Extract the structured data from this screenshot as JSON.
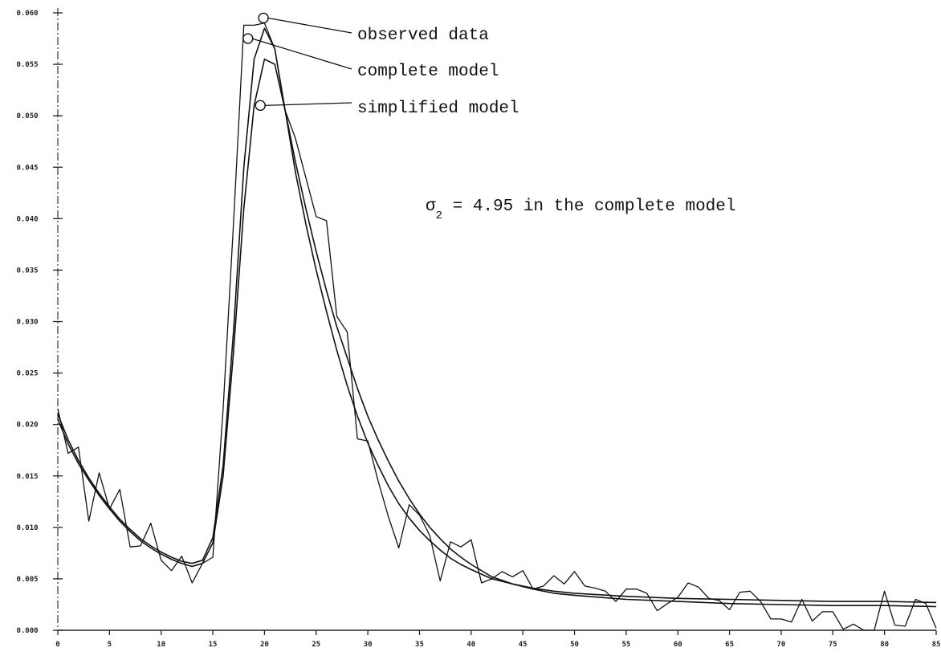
{
  "chart_data": {
    "type": "line",
    "title": "",
    "xlabel": "",
    "ylabel": "",
    "xlim": [
      0,
      85
    ],
    "ylim": [
      0.0,
      0.06
    ],
    "grid": false,
    "x_ticks": [
      0,
      5,
      10,
      15,
      20,
      25,
      30,
      35,
      40,
      45,
      50,
      55,
      60,
      65,
      70,
      75,
      80,
      85
    ],
    "x_tick_labels": [
      "0",
      "5",
      "10",
      "15",
      "20",
      "25",
      "30",
      "35",
      "40",
      "45",
      "50",
      "55",
      "60",
      "65",
      "70",
      "75",
      "80",
      "85"
    ],
    "y_ticks": [
      0.0,
      0.005,
      0.01,
      0.015,
      0.02,
      0.025,
      0.03,
      0.035,
      0.04,
      0.045,
      0.05,
      0.055,
      0.06
    ],
    "y_tick_labels": [
      "0.000",
      "0.005",
      "0.010",
      "0.015",
      "0.020",
      "0.025",
      "0.030",
      "0.035",
      "0.040",
      "0.045",
      "0.050",
      "0.055",
      "0.060"
    ],
    "series": [
      {
        "name": "observed data",
        "x": [
          0,
          1,
          2,
          3,
          4,
          5,
          6,
          7,
          8,
          9,
          10,
          11,
          12,
          13,
          14,
          15,
          16,
          17,
          18,
          19,
          20,
          21,
          22,
          23,
          24,
          25,
          26,
          27,
          28,
          29,
          30,
          31,
          32,
          33,
          34,
          35,
          36,
          37,
          38,
          39,
          40,
          41,
          42,
          43,
          44,
          45,
          46,
          47,
          48,
          49,
          50,
          51,
          52,
          53,
          54,
          55,
          56,
          57,
          58,
          59,
          60,
          61,
          62,
          63,
          64,
          65,
          66,
          67,
          68,
          69,
          70,
          71,
          72,
          73,
          74,
          75,
          76,
          77,
          78,
          79,
          80,
          81,
          82,
          83,
          84,
          85
        ],
        "y": [
          0.0215,
          0.0172,
          0.0178,
          0.0106,
          0.0153,
          0.0118,
          0.0137,
          0.0081,
          0.0082,
          0.0104,
          0.0068,
          0.0058,
          0.0072,
          0.0046,
          0.0065,
          0.0071,
          0.0215,
          0.0395,
          0.0588,
          0.0588,
          0.059,
          0.0565,
          0.0505,
          0.0478,
          0.044,
          0.0402,
          0.0398,
          0.0305,
          0.029,
          0.0186,
          0.0184,
          0.0145,
          0.011,
          0.008,
          0.0122,
          0.0112,
          0.0092,
          0.0048,
          0.0086,
          0.0081,
          0.0088,
          0.0046,
          0.005,
          0.0057,
          0.0052,
          0.0058,
          0.004,
          0.0043,
          0.0053,
          0.0045,
          0.0057,
          0.0043,
          0.0041,
          0.0038,
          0.0028,
          0.004,
          0.004,
          0.0036,
          0.0019,
          0.0026,
          0.0032,
          0.0046,
          0.0042,
          0.0031,
          0.0029,
          0.002,
          0.0037,
          0.0038,
          0.0028,
          0.0011,
          0.0011,
          0.0008,
          0.003,
          0.0009,
          0.0018,
          0.0018,
          0.0001,
          0.0006,
          0.0,
          0.0,
          0.0038,
          0.0005,
          0.0004,
          0.003,
          0.0026,
          0.0002
        ]
      },
      {
        "name": "complete model",
        "x": [
          0,
          1,
          2,
          3,
          4,
          5,
          6,
          7,
          8,
          9,
          10,
          11,
          12,
          13,
          14,
          15,
          16,
          17,
          18,
          19,
          20,
          21,
          22,
          23,
          24,
          25,
          26,
          27,
          28,
          29,
          30,
          31,
          32,
          33,
          34,
          35,
          36,
          37,
          38,
          39,
          40,
          42,
          44,
          46,
          48,
          50,
          55,
          60,
          65,
          70,
          75,
          80,
          85
        ],
        "y": [
          0.021,
          0.0185,
          0.0165,
          0.0148,
          0.0133,
          0.012,
          0.0108,
          0.0098,
          0.0089,
          0.0082,
          0.0076,
          0.0071,
          0.0067,
          0.0065,
          0.0068,
          0.009,
          0.016,
          0.029,
          0.045,
          0.0555,
          0.0585,
          0.0565,
          0.0505,
          0.0445,
          0.0395,
          0.035,
          0.031,
          0.0272,
          0.0238,
          0.0208,
          0.0182,
          0.016,
          0.014,
          0.0123,
          0.0109,
          0.0097,
          0.0087,
          0.0078,
          0.007,
          0.0064,
          0.0059,
          0.005,
          0.0045,
          0.0041,
          0.0038,
          0.0036,
          0.0033,
          0.0031,
          0.003,
          0.0029,
          0.0028,
          0.0028,
          0.0027
        ]
      },
      {
        "name": "simplified model",
        "x": [
          0,
          1,
          2,
          3,
          4,
          5,
          6,
          7,
          8,
          9,
          10,
          11,
          12,
          13,
          14,
          15,
          16,
          17,
          18,
          19,
          20,
          21,
          22,
          23,
          24,
          25,
          26,
          27,
          28,
          29,
          30,
          31,
          32,
          33,
          34,
          35,
          36,
          37,
          38,
          39,
          40,
          42,
          44,
          46,
          48,
          50,
          55,
          60,
          65,
          70,
          75,
          80,
          85
        ],
        "y": [
          0.0205,
          0.0181,
          0.0162,
          0.0146,
          0.0131,
          0.0118,
          0.0106,
          0.0096,
          0.0087,
          0.008,
          0.0074,
          0.0069,
          0.0065,
          0.0062,
          0.0065,
          0.0085,
          0.015,
          0.027,
          0.041,
          0.051,
          0.0555,
          0.055,
          0.0505,
          0.0455,
          0.041,
          0.0368,
          0.033,
          0.0295,
          0.0265,
          0.0235,
          0.0208,
          0.0185,
          0.0164,
          0.0145,
          0.0128,
          0.0113,
          0.01,
          0.0089,
          0.0079,
          0.0071,
          0.0064,
          0.0052,
          0.0045,
          0.004,
          0.0036,
          0.0034,
          0.003,
          0.0028,
          0.0026,
          0.0025,
          0.0024,
          0.0024,
          0.0023
        ]
      }
    ],
    "annotations": [
      {
        "text": "observed data",
        "target_x": 19.9,
        "target_y": 0.0595
      },
      {
        "text": "complete model",
        "target_x": 18.4,
        "target_y": 0.0575
      },
      {
        "text": "simplified model",
        "target_x": 19.6,
        "target_y": 0.051
      }
    ],
    "sigma_note": {
      "symbol": "σ",
      "subscript": "2",
      "text": " = 4.95 in the complete model"
    }
  }
}
